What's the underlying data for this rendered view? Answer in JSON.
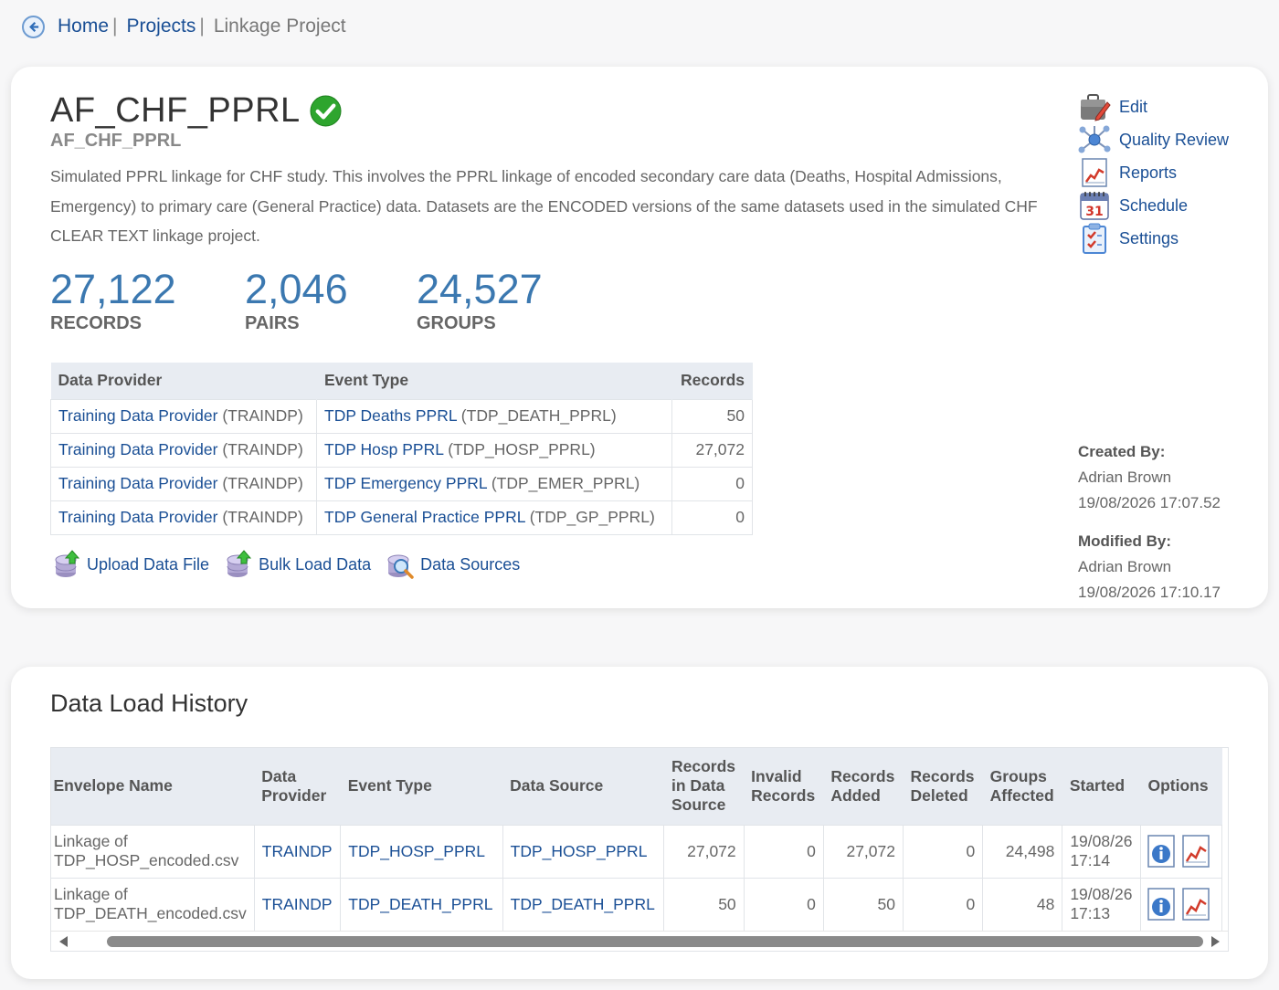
{
  "breadcrumb": {
    "home": "Home",
    "sep1": "|",
    "projects": "Projects",
    "sep2": "|",
    "current": "Linkage Project"
  },
  "project": {
    "title": "AF_CHF_PPRL",
    "code": "AF_CHF_PPRL",
    "description": "Simulated PPRL linkage for CHF study. This involves the PPRL linkage of encoded secondary care data (Deaths, Hospital Admissions, Emergency) to primary care (General Practice) data. Datasets are the ENCODED versions of the same datasets used in the simulated CHF CLEAR TEXT linkage project.",
    "status_color": "#2ea52e"
  },
  "stats": [
    {
      "value": "27,122",
      "label": "RECORDS"
    },
    {
      "value": "2,046",
      "label": "PAIRS"
    },
    {
      "value": "24,527",
      "label": "GROUPS"
    }
  ],
  "providers_table": {
    "headers": [
      "Data Provider",
      "Event Type",
      "Records"
    ],
    "rows": [
      {
        "provider": "Training Data Provider",
        "provider_code": "(TRAINDP)",
        "event": "TDP Deaths PPRL",
        "event_code": "(TDP_DEATH_PPRL)",
        "records": "50"
      },
      {
        "provider": "Training Data Provider",
        "provider_code": "(TRAINDP)",
        "event": "TDP Hosp PPRL",
        "event_code": "(TDP_HOSP_PPRL)",
        "records": "27,072"
      },
      {
        "provider": "Training Data Provider",
        "provider_code": "(TRAINDP)",
        "event": "TDP Emergency PPRL",
        "event_code": "(TDP_EMER_PPRL)",
        "records": "0"
      },
      {
        "provider": "Training Data Provider",
        "provider_code": "(TRAINDP)",
        "event": "TDP General Practice PPRL",
        "event_code": "(TDP_GP_PPRL)",
        "records": "0"
      }
    ]
  },
  "actions": {
    "upload": "Upload Data File",
    "bulk": "Bulk Load Data",
    "sources": "Data Sources"
  },
  "side_menu": {
    "edit": "Edit",
    "quality": "Quality Review",
    "reports": "Reports",
    "schedule": "Schedule",
    "settings": "Settings",
    "calendar_day": "31"
  },
  "meta": {
    "created_label": "Created By:",
    "created_by": "Adrian Brown",
    "created_at": "19/08/2026 17:07.52",
    "modified_label": "Modified By:",
    "modified_by": "Adrian Brown",
    "modified_at": "19/08/2026 17:10.17"
  },
  "history": {
    "title": "Data Load History",
    "headers": {
      "envelope": "Envelope Name",
      "provider_1": "Data",
      "provider_2": "Provider",
      "event": "Event Type",
      "source": "Data Source",
      "rids_1": "Records",
      "rids_2": "in Data",
      "rids_3": "Source",
      "invalid_1": "Invalid",
      "invalid_2": "Records",
      "added_1": "Records",
      "added_2": "Added",
      "deleted_1": "Records",
      "deleted_2": "Deleted",
      "groups_1": "Groups",
      "groups_2": "Affected",
      "started": "Started",
      "options": "Options"
    },
    "rows": [
      {
        "env_1": "Linkage of",
        "env_2": "TDP_HOSP_encoded.csv",
        "provider": "TRAINDP",
        "event": "TDP_HOSP_PPRL",
        "source": "TDP_HOSP_PPRL",
        "in_source": "27,072",
        "invalid": "0",
        "added": "27,072",
        "deleted": "0",
        "groups": "24,498",
        "date": "19/08/26",
        "time": "17:14"
      },
      {
        "env_1": "Linkage of",
        "env_2": "TDP_DEATH_encoded.csv",
        "provider": "TRAINDP",
        "event": "TDP_DEATH_PPRL",
        "source": "TDP_DEATH_PPRL",
        "in_source": "50",
        "invalid": "0",
        "added": "50",
        "deleted": "0",
        "groups": "48",
        "date": "19/08/26",
        "time": "17:13"
      }
    ]
  }
}
